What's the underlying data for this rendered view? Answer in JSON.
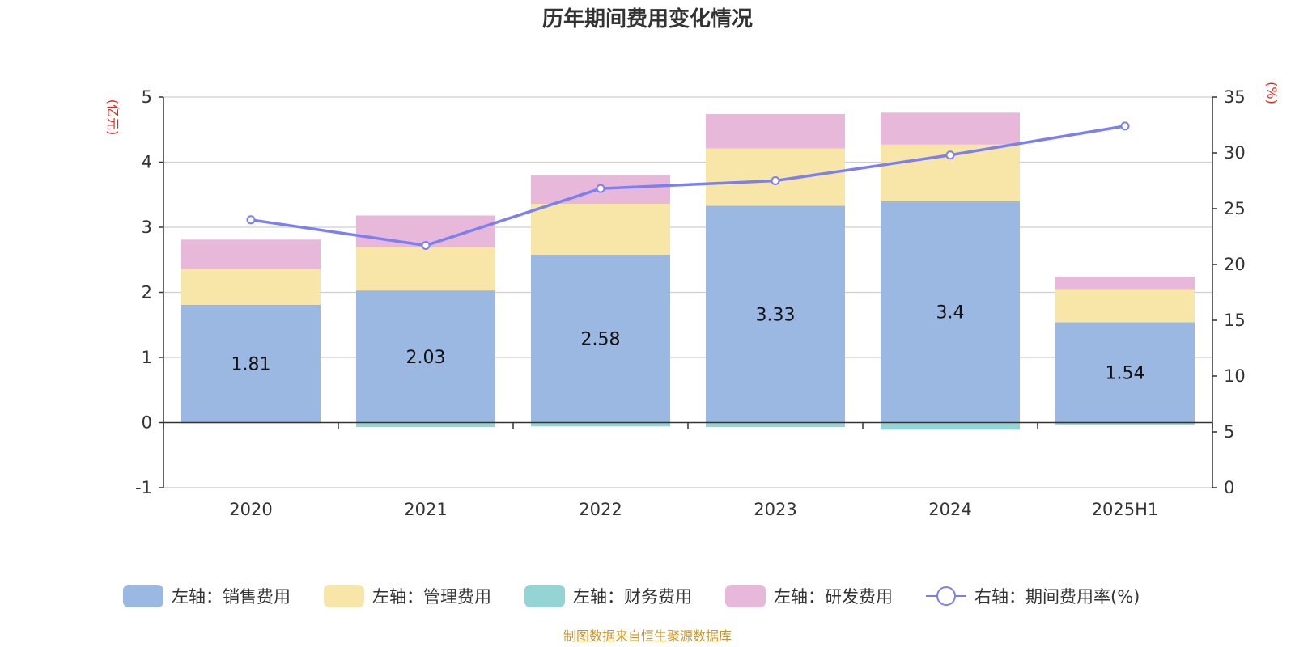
{
  "chart_data": {
    "type": "bar",
    "stacked": true,
    "title": "历年期间费用变化情况",
    "left_axis_unit": "(亿元)",
    "right_axis_unit": "(%)",
    "categories": [
      "2020",
      "2021",
      "2022",
      "2023",
      "2024",
      "2025H1"
    ],
    "left_ylim": [
      -1,
      5
    ],
    "left_ticks": [
      "5",
      "4",
      "3",
      "2",
      "1",
      "0",
      "-1"
    ],
    "right_ylim": [
      0,
      35
    ],
    "right_ticks": [
      "35",
      "30",
      "25",
      "20",
      "15",
      "10",
      "5",
      "0"
    ],
    "grid": true,
    "legend_position": "bottom",
    "series": [
      {
        "name": "左轴：销售费用",
        "axis": "left",
        "type": "bar",
        "color": "#9bb8e2",
        "values": [
          1.81,
          2.03,
          2.58,
          3.33,
          3.4,
          1.54
        ],
        "labels": [
          "1.81",
          "2.03",
          "2.58",
          "3.33",
          "3.4",
          "1.54"
        ]
      },
      {
        "name": "左轴：管理费用",
        "axis": "left",
        "type": "bar",
        "color": "#f8e6a8",
        "values": [
          0.55,
          0.66,
          0.78,
          0.88,
          0.87,
          0.51
        ]
      },
      {
        "name": "左轴：财务费用",
        "axis": "left",
        "type": "bar",
        "color": "#94d4d4",
        "values": [
          -0.01,
          -0.07,
          -0.06,
          -0.07,
          -0.11,
          -0.03
        ]
      },
      {
        "name": "左轴：研发费用",
        "axis": "left",
        "type": "bar",
        "color": "#e8b8da",
        "values": [
          0.45,
          0.49,
          0.44,
          0.53,
          0.49,
          0.19
        ]
      },
      {
        "name": "右轴：期间费用率(%)",
        "axis": "right",
        "type": "line",
        "color": "#7b7ff0",
        "values": [
          24.0,
          21.7,
          26.8,
          27.5,
          29.8,
          32.4
        ]
      }
    ]
  },
  "source_text": "制图数据来自恒生聚源数据库"
}
